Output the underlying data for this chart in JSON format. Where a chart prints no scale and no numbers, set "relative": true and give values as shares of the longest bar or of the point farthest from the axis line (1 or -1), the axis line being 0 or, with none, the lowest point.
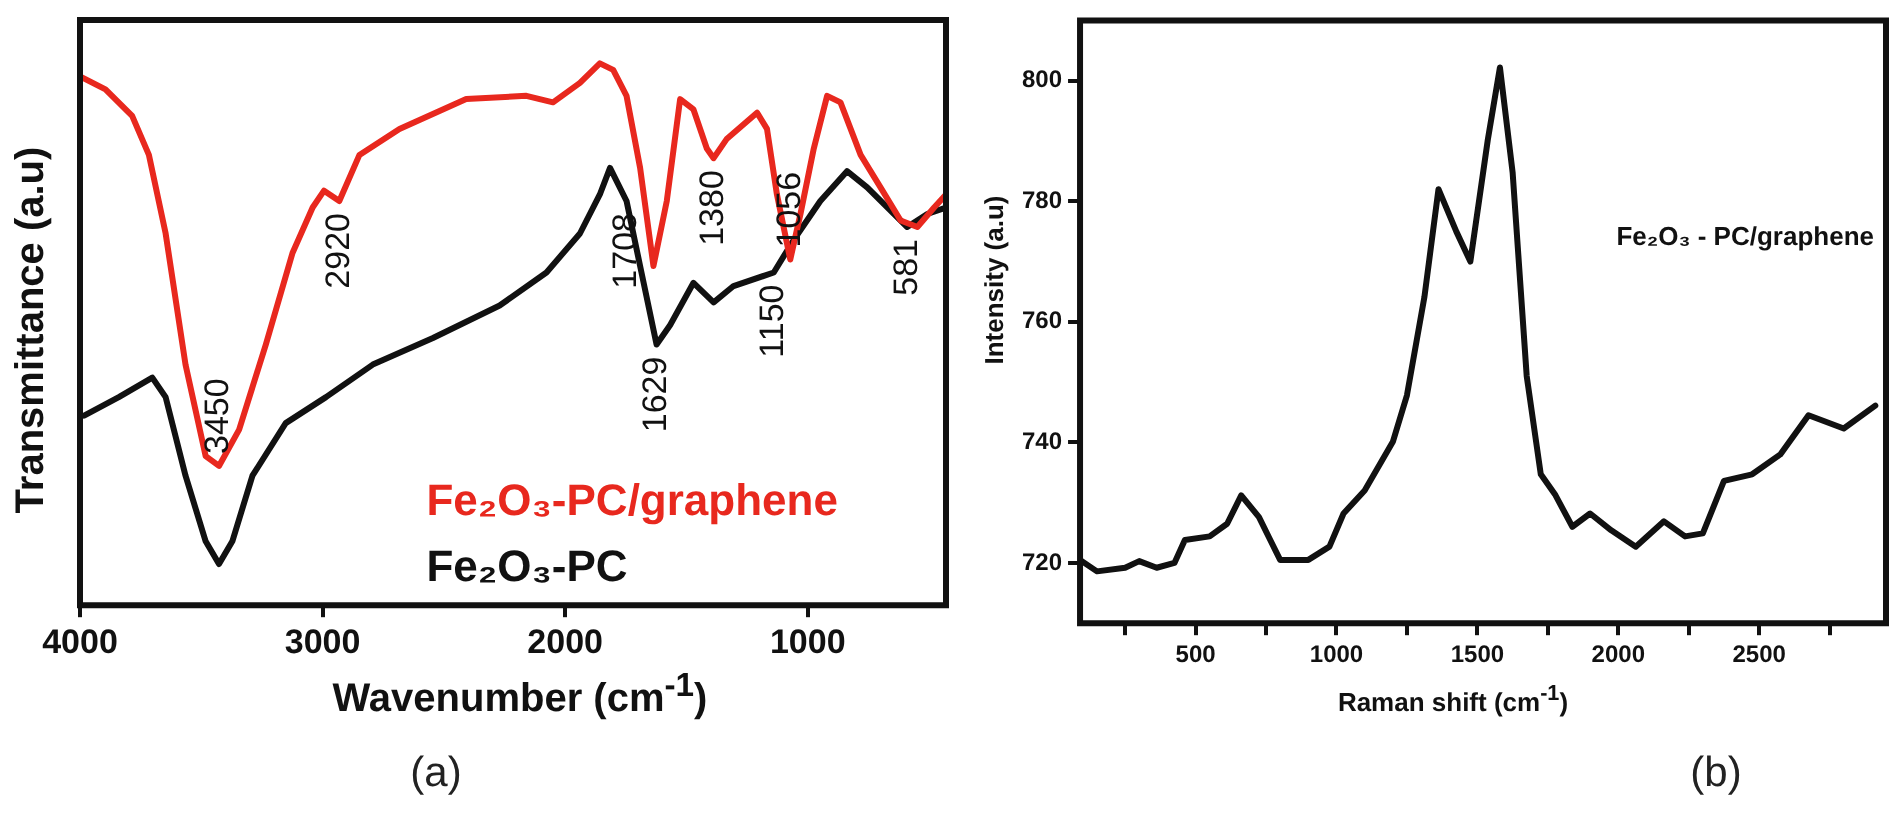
{
  "chart_data": [
    {
      "type": "line",
      "relative": true,
      "xlabel": "Wavenumber (cm$^{-1}$)",
      "ylabel": "Transmittance (a.u)",
      "xlim": [
        4000,
        430
      ],
      "xticks": [
        4000,
        3000,
        2000,
        1000
      ],
      "legend": "bottom right",
      "annotations": [
        {
          "text": "3450",
          "x": 3427,
          "y": 0.257
        },
        {
          "text": "2920",
          "x": 2931,
          "y": 0.746
        },
        {
          "text": "1708",
          "x": 1747,
          "y": 0.746
        },
        {
          "text": "1629",
          "x": 1623,
          "y": 0.481
        },
        {
          "text": "1380",
          "x": 1388,
          "y": 0.825
        },
        {
          "text": "1150",
          "x": 1140,
          "y": 0.614
        },
        {
          "text": "1056",
          "x": 1072,
          "y": 0.638
        },
        {
          "text": "581",
          "x": 590,
          "y": 0.698
        },
        "(a)"
      ],
      "series": [
        {
          "name": "Fe₂O₃-PC/graphene",
          "color": "#e8281e",
          "x": [
            4000,
            3895,
            3785,
            3716,
            3647,
            3565,
            3482,
            3427,
            3344,
            3234,
            3124,
            3041,
            2994,
            2931,
            2848,
            2683,
            2408,
            2160,
            2050,
            1939,
            1857,
            1802,
            1747,
            1691,
            1636,
            1581,
            1526,
            1471,
            1416,
            1388,
            1333,
            1209,
            1168,
            1127,
            1072,
            1030,
            975,
            920,
            865,
            782,
            700,
            617,
            548,
            479,
            430
          ],
          "values": [
            0.976,
            0.952,
            0.903,
            0.831,
            0.686,
            0.444,
            0.275,
            0.257,
            0.324,
            0.481,
            0.65,
            0.734,
            0.765,
            0.746,
            0.831,
            0.879,
            0.934,
            0.94,
            0.928,
            0.964,
            1,
            0.988,
            0.94,
            0.807,
            0.626,
            0.746,
            0.934,
            0.915,
            0.843,
            0.825,
            0.861,
            0.909,
            0.879,
            0.758,
            0.638,
            0.722,
            0.843,
            0.94,
            0.928,
            0.831,
            0.771,
            0.71,
            0.698,
            0.734,
            0.758
          ]
        },
        {
          "name": "Fe₂O₃-PC",
          "color": "#111111",
          "x": [
            3983,
            3840,
            3702,
            3647,
            3565,
            3482,
            3427,
            3372,
            3289,
            3152,
            2986,
            2793,
            2545,
            2270,
            2077,
            1939,
            1857,
            1815,
            1747,
            1691,
            1623,
            1567,
            1471,
            1388,
            1306,
            1140,
            1058,
            948,
            838,
            755,
            645,
            590,
            507,
            430
          ],
          "values": [
            0.35,
            0.384,
            0.42,
            0.384,
            0.239,
            0.118,
            0.076,
            0.118,
            0.239,
            0.336,
            0.384,
            0.444,
            0.493,
            0.553,
            0.614,
            0.686,
            0.758,
            0.807,
            0.746,
            0.626,
            0.481,
            0.517,
            0.595,
            0.559,
            0.589,
            0.614,
            0.674,
            0.746,
            0.801,
            0.771,
            0.722,
            0.698,
            0.722,
            0.734
          ]
        }
      ]
    },
    {
      "type": "line",
      "xlabel": "Raman shift (cm$^{-1}$)",
      "ylabel": "Intensity (a.u)",
      "xlim": [
        90,
        2950
      ],
      "ylim": [
        710,
        810
      ],
      "xticks": [
        {
          "value": 250,
          "label": null
        },
        500,
        {
          "value": 750,
          "label": null
        },
        1000,
        {
          "value": 1250,
          "label": null
        },
        1500,
        {
          "value": 1750,
          "label": null
        },
        2000,
        {
          "value": 2250,
          "label": null
        },
        2500,
        {
          "value": 2750,
          "label": null
        }
      ],
      "yticks": [
        720,
        740,
        760,
        780,
        800
      ],
      "legend": "top right",
      "annotations": [
        "(b)"
      ],
      "series": [
        {
          "name": "Fe₂O₃ - PC/graphene",
          "color": "#111111",
          "x": [
            90,
            150,
            250,
            300,
            362,
            425,
            462,
            550,
            612,
            662,
            725,
            800,
            900,
            975,
            1025,
            1100,
            1200,
            1250,
            1312,
            1362,
            1425,
            1475,
            1537,
            1580,
            1625,
            1675,
            1725,
            1775,
            1837,
            1900,
            1975,
            2062,
            2162,
            2237,
            2300,
            2375,
            2475,
            2575,
            2675,
            2800,
            2912
          ],
          "values": [
            720.5,
            718.6,
            719.2,
            720.3,
            719.2,
            720,
            723.8,
            724.4,
            726.5,
            731.2,
            727.6,
            720.5,
            720.5,
            722.7,
            728.2,
            732,
            740.1,
            747.8,
            764.1,
            782,
            775,
            770,
            790.2,
            802.2,
            784.8,
            751,
            734.7,
            731.4,
            726,
            728.2,
            725.4,
            722.7,
            726.9,
            724.4,
            724.9,
            733.6,
            734.7,
            738,
            744.5,
            742.3,
            746.1
          ]
        }
      ]
    }
  ]
}
